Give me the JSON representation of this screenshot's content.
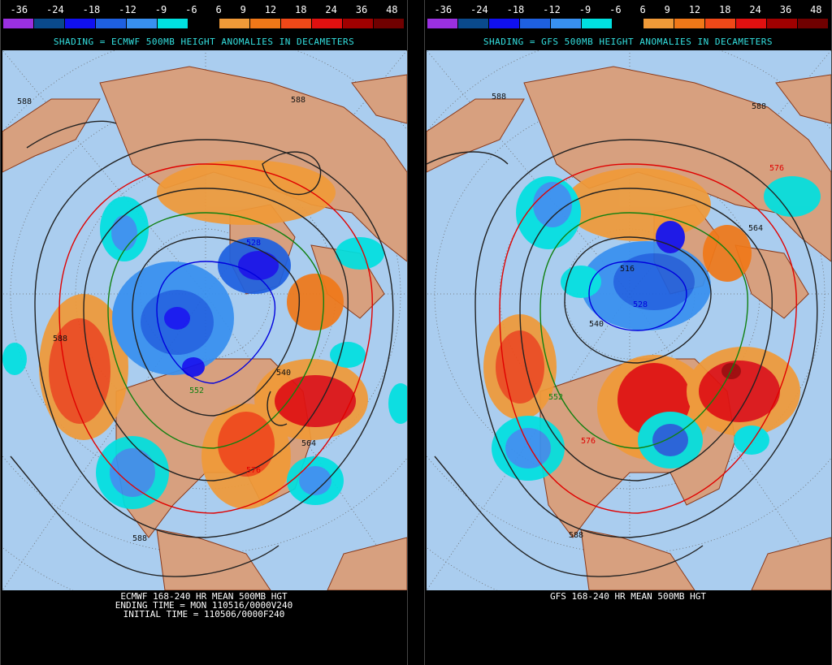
{
  "scale": {
    "ticks": [
      "-36",
      "-24",
      "-18",
      "-12",
      "-9",
      "-6",
      "6",
      "9",
      "12",
      "18",
      "24",
      "36",
      "48"
    ],
    "colors": [
      "#9a30e0",
      "#0a4a8c",
      "#1010f0",
      "#1e60e0",
      "#3890f0",
      "#00e0e0",
      "#000000",
      "#f09a38",
      "#f07818",
      "#f04818",
      "#e01010",
      "#a00000",
      "#700000"
    ]
  },
  "left": {
    "subtitle": "SHADING = ECMWF 500MB HEIGHT ANOMALIES IN DECAMETERS",
    "footer": [
      "ECMWF 168-240 HR MEAN 500MB HGT",
      "ENDING TIME = MON 110516/0000V240",
      "INITIAL TIME = 110506/0000F240"
    ],
    "contour_labels": [
      "588",
      "588",
      "588",
      "552",
      "564",
      "540",
      "528",
      "588",
      "576"
    ]
  },
  "right": {
    "subtitle": "SHADING = GFS 500MB HEIGHT ANOMALIES IN DECAMETERS",
    "footer": [
      "GFS 168-240 HR MEAN 500MB HGT"
    ],
    "contour_labels": [
      "588",
      "588",
      "576",
      "564",
      "516",
      "528",
      "540",
      "552",
      "576",
      "588"
    ]
  },
  "colors": {
    "ocean": "#aacdef",
    "land": "#d7a07f",
    "border": "#8b3a1a",
    "contour": "#222222",
    "contour_red": "#e00000",
    "contour_green": "#108010",
    "contour_blue": "#0000dd",
    "subtitle": "#33e0e0"
  }
}
